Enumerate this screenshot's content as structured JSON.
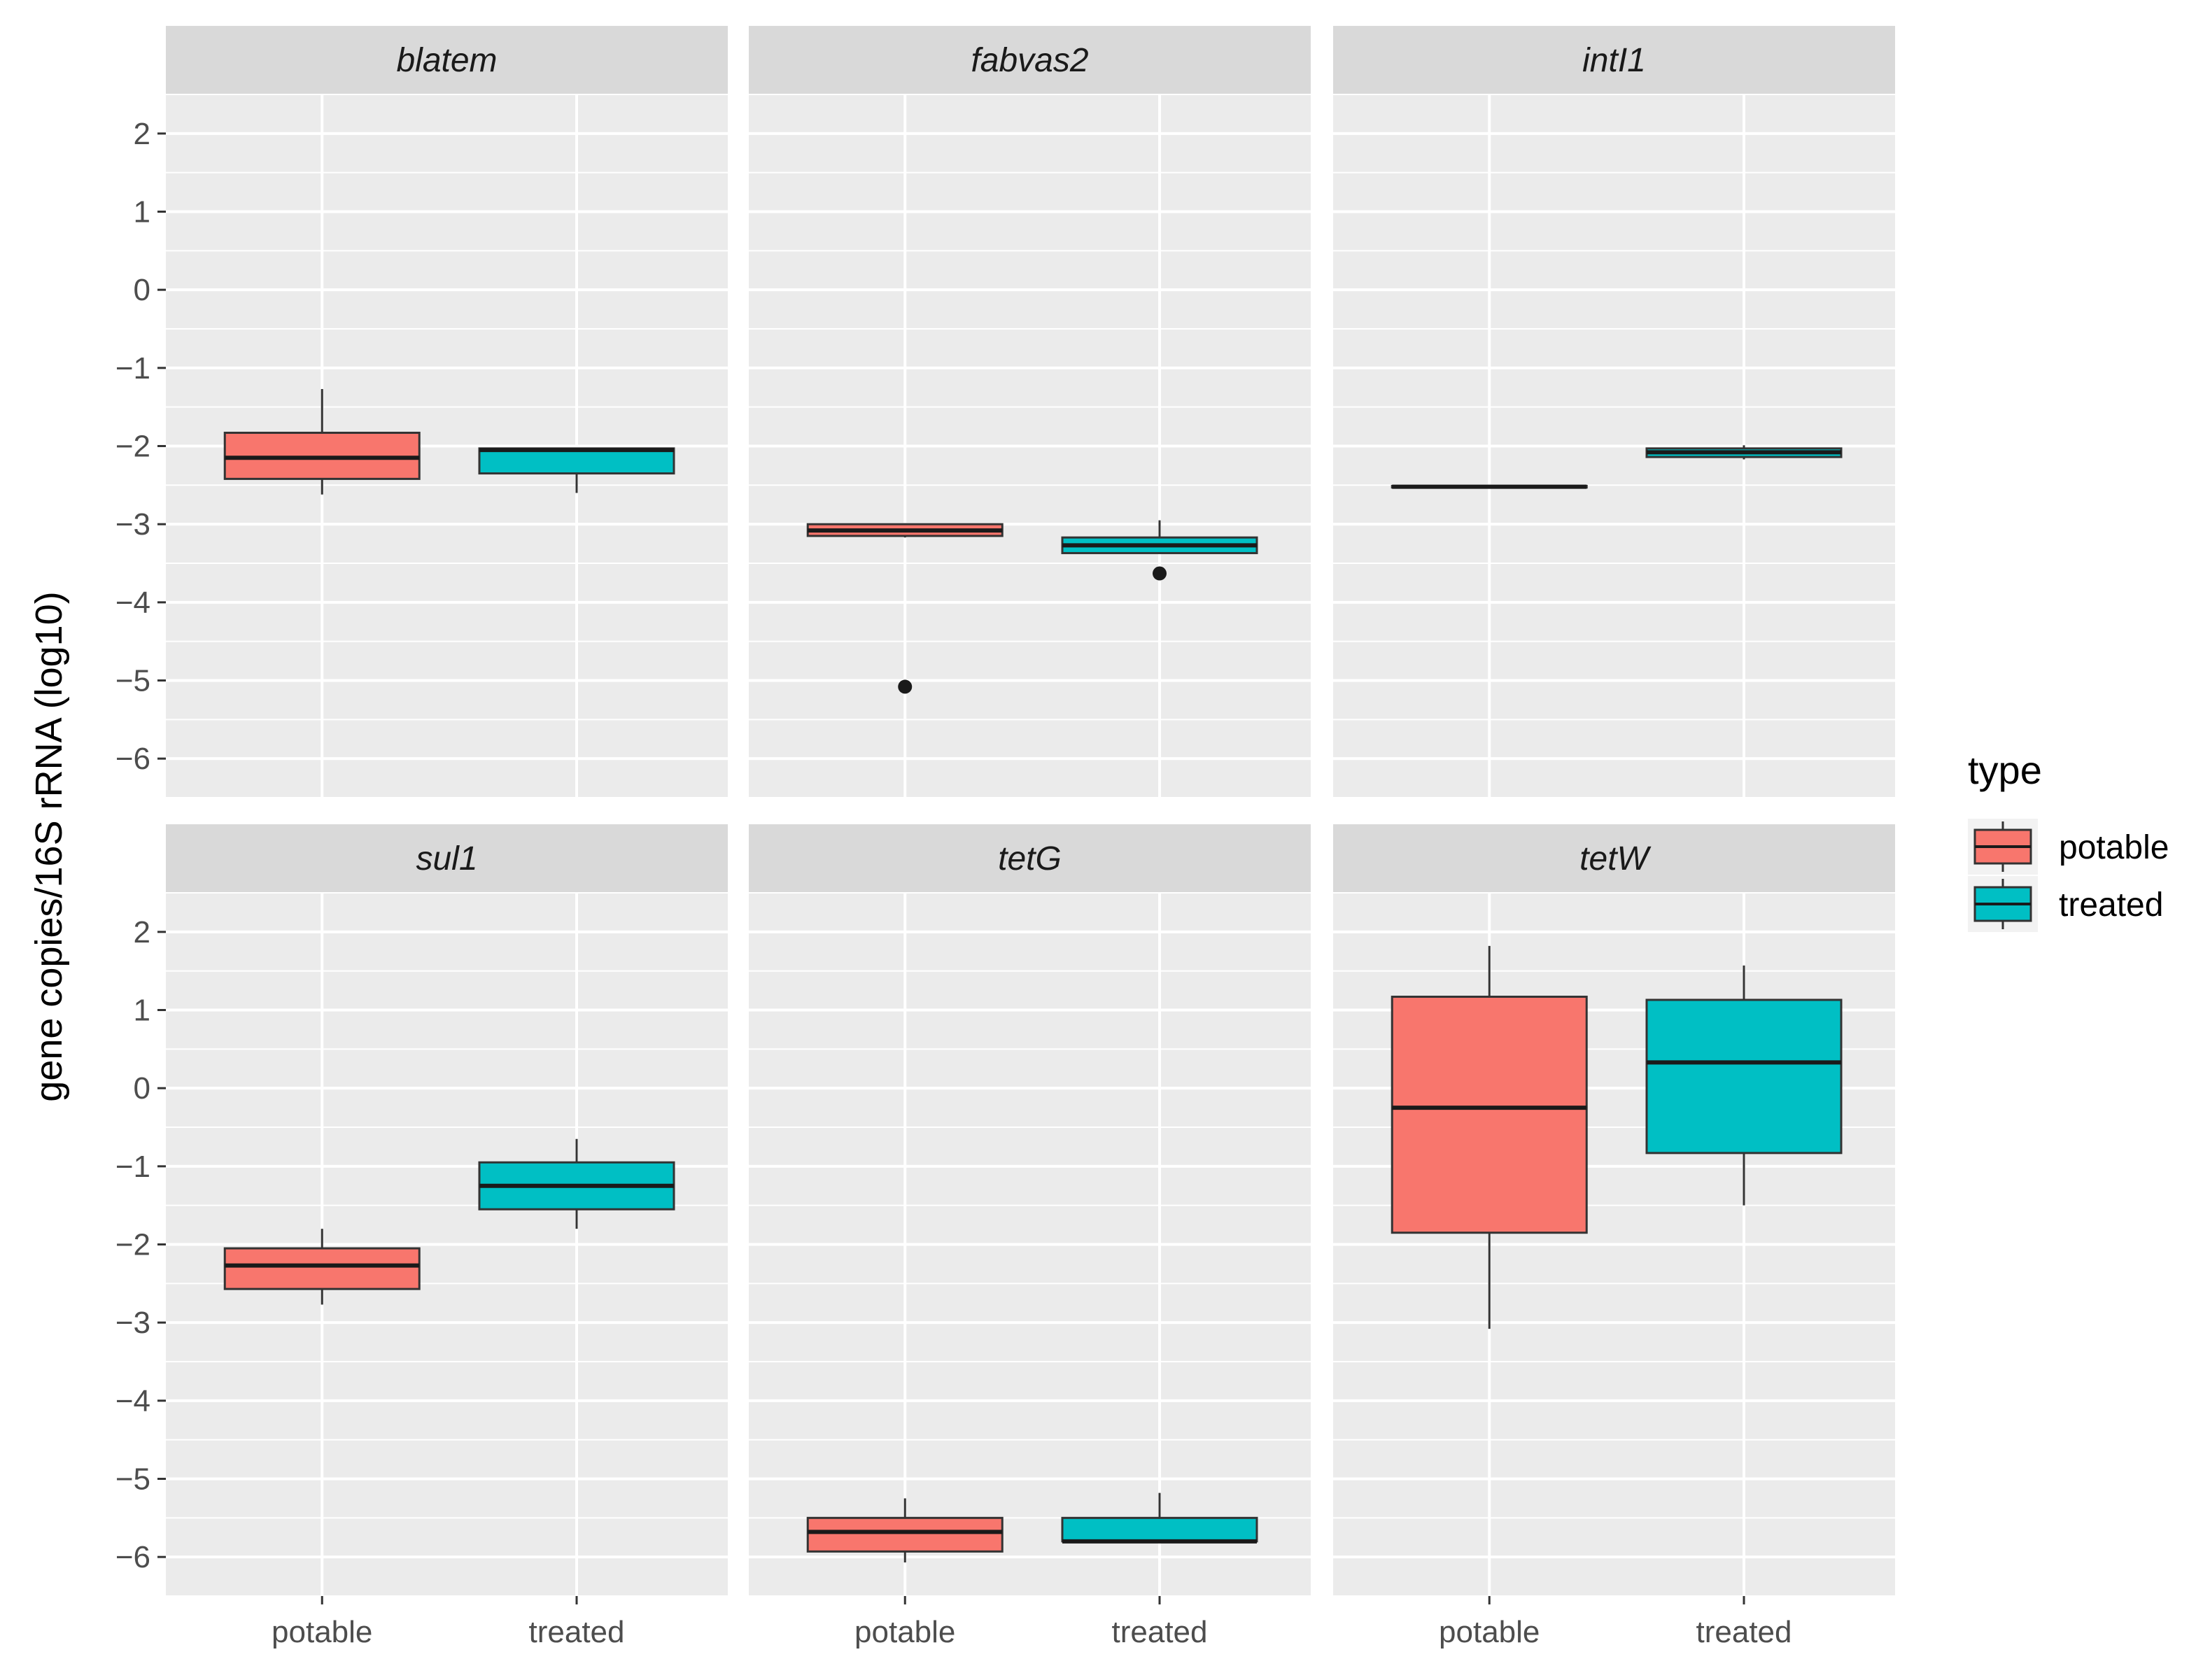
{
  "chart_data": {
    "type": "boxplot",
    "ylabel": "gene copies/16S rRNA (log10)",
    "xlabel": "",
    "ylim": [
      -6.5,
      2.5
    ],
    "y_ticks": [
      2,
      1,
      0,
      -1,
      -2,
      -3,
      -4,
      -5,
      -6
    ],
    "y_tick_labels": [
      "2",
      "1",
      "0",
      "−1",
      "−2",
      "−3",
      "−4",
      "−5",
      "−6"
    ],
    "categories": [
      "potable",
      "treated"
    ],
    "grid": true,
    "legend": {
      "title": "type",
      "placement": "right",
      "entries": [
        {
          "label": "potable",
          "color": "#F8766D"
        },
        {
          "label": "treated",
          "color": "#00BFC4"
        }
      ]
    },
    "facets": [
      {
        "name": "blatem",
        "boxes": [
          {
            "category": "potable",
            "min": -2.62,
            "q1": -2.42,
            "median": -2.15,
            "q3": -1.83,
            "max": -1.27,
            "outliers": []
          },
          {
            "category": "treated",
            "min": -2.6,
            "q1": -2.35,
            "median": -2.05,
            "q3": -2.03,
            "max": -2.03,
            "outliers": []
          }
        ]
      },
      {
        "name": "fabvas2",
        "boxes": [
          {
            "category": "potable",
            "min": -3.17,
            "q1": -3.15,
            "median": -3.08,
            "q3": -3.0,
            "max": -3.0,
            "outliers": [
              -5.08
            ]
          },
          {
            "category": "treated",
            "min": -3.37,
            "q1": -3.37,
            "median": -3.27,
            "q3": -3.17,
            "max": -2.95,
            "outliers": [
              -3.63
            ]
          }
        ]
      },
      {
        "name": "intI1",
        "boxes": [
          {
            "category": "potable",
            "min": -2.53,
            "q1": -2.53,
            "median": -2.52,
            "q3": -2.51,
            "max": -2.51,
            "outliers": []
          },
          {
            "category": "treated",
            "min": -2.17,
            "q1": -2.14,
            "median": -2.08,
            "q3": -2.03,
            "max": -1.99,
            "outliers": []
          }
        ]
      },
      {
        "name": "sul1",
        "boxes": [
          {
            "category": "potable",
            "min": -2.77,
            "q1": -2.57,
            "median": -2.27,
            "q3": -2.05,
            "max": -1.8,
            "outliers": []
          },
          {
            "category": "treated",
            "min": -1.8,
            "q1": -1.55,
            "median": -1.25,
            "q3": -0.95,
            "max": -0.65,
            "outliers": []
          }
        ]
      },
      {
        "name": "tetG",
        "boxes": [
          {
            "category": "potable",
            "min": -6.07,
            "q1": -5.93,
            "median": -5.68,
            "q3": -5.5,
            "max": -5.25,
            "outliers": []
          },
          {
            "category": "treated",
            "min": -5.82,
            "q1": -5.8,
            "median": -5.8,
            "q3": -5.5,
            "max": -5.18,
            "outliers": []
          }
        ]
      },
      {
        "name": "tetW",
        "boxes": [
          {
            "category": "potable",
            "min": -3.08,
            "q1": -1.85,
            "median": -0.25,
            "q3": 1.17,
            "max": 1.82,
            "outliers": []
          },
          {
            "category": "treated",
            "min": -1.5,
            "q1": -0.83,
            "median": 0.33,
            "q3": 1.13,
            "max": 1.57,
            "outliers": []
          }
        ]
      }
    ]
  }
}
